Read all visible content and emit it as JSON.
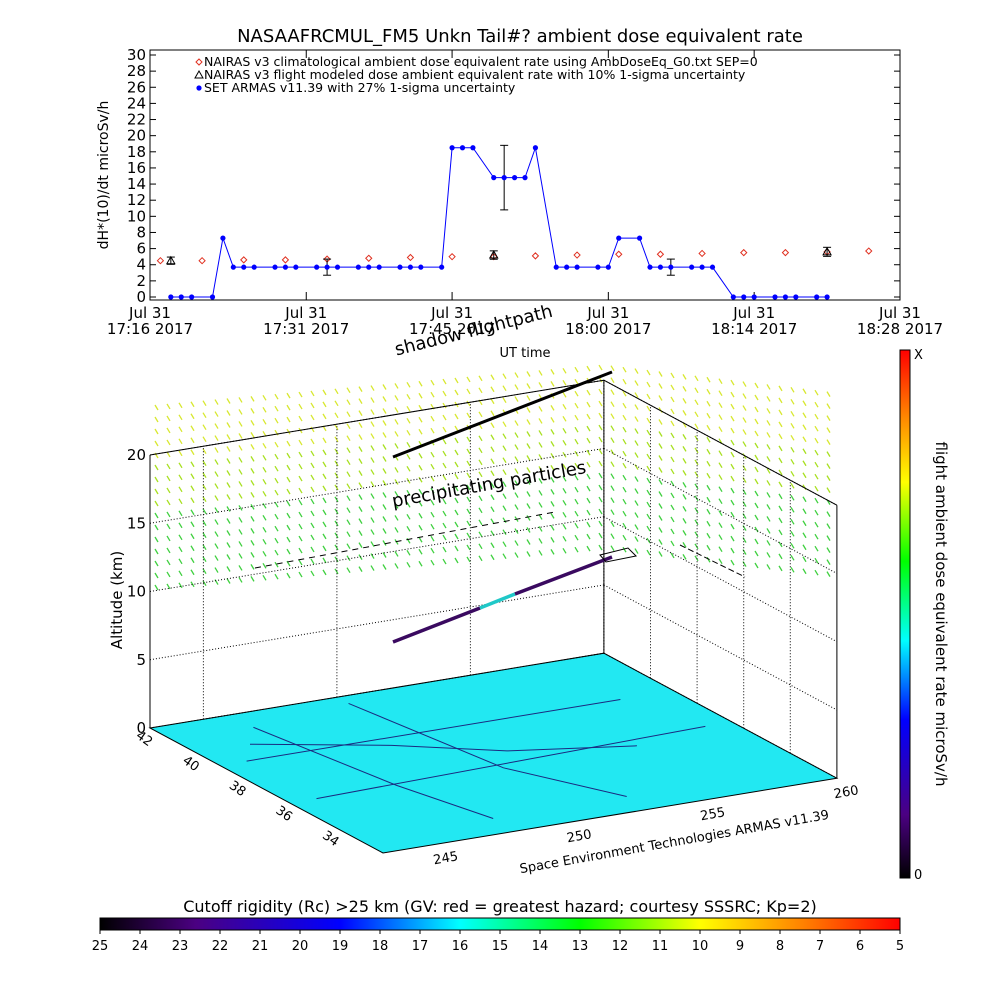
{
  "chart_data": [
    {
      "type": "line",
      "title": "NASAAFRCMUL_FM5 Unkn Tail#? ambient dose equivalent rate",
      "x_label": "UT time",
      "y_label": "dH*(10)/dt microSv/h",
      "xlim": [
        "2017-07-31T17:16",
        "2017-07-31T18:28"
      ],
      "xticks": [
        {
          "value": "2017-07-31T17:16",
          "label": [
            "Jul 31",
            "17:16 2017"
          ]
        },
        {
          "value": "2017-07-31T17:31",
          "label": [
            "Jul 31",
            "17:31 2017"
          ]
        },
        {
          "value": "2017-07-31T17:45",
          "label": [
            "Jul 31",
            "17:45 2017"
          ]
        },
        {
          "value": "2017-07-31T18:00",
          "label": [
            "Jul 31",
            "18:00 2017"
          ]
        },
        {
          "value": "2017-07-31T18:14",
          "label": [
            "Jul 31",
            "18:14 2017"
          ]
        },
        {
          "value": "2017-07-31T18:28",
          "label": [
            "Jul 31",
            "18:28 2017"
          ]
        }
      ],
      "ylim": [
        0,
        30
      ],
      "yticks": [
        0,
        2,
        4,
        6,
        8,
        10,
        12,
        14,
        16,
        18,
        20,
        22,
        24,
        26,
        28,
        30
      ],
      "series": [
        {
          "name": "NAIRAS v3 climatological ambient dose equivalent rate using AmbDoseEq_G0.txt SEP=0",
          "color": "#e03020",
          "marker": "diamond",
          "connected": false,
          "x": [
            "2017-07-31T17:17",
            "2017-07-31T17:21",
            "2017-07-31T17:25",
            "2017-07-31T17:29",
            "2017-07-31T17:33",
            "2017-07-31T17:37",
            "2017-07-31T17:41",
            "2017-07-31T17:45",
            "2017-07-31T17:49",
            "2017-07-31T17:53",
            "2017-07-31T17:57",
            "2017-07-31T18:01",
            "2017-07-31T18:05",
            "2017-07-31T18:09",
            "2017-07-31T18:13",
            "2017-07-31T18:17",
            "2017-07-31T18:21",
            "2017-07-31T18:25"
          ],
          "values": [
            4.5,
            4.5,
            4.6,
            4.6,
            4.7,
            4.8,
            4.9,
            5.0,
            5.0,
            5.1,
            5.2,
            5.3,
            5.3,
            5.4,
            5.5,
            5.5,
            5.6,
            5.7
          ]
        },
        {
          "name": "NAIRAS v3 flight modeled dose ambient equivalent rate with 10% 1-sigma uncertainty",
          "color": "#000000",
          "marker": "triangle",
          "connected": false,
          "x": [
            "2017-07-31T17:18",
            "2017-07-31T17:49",
            "2017-07-31T18:21"
          ],
          "values": [
            4.5,
            5.2,
            5.6
          ],
          "errors": [
            0.45,
            0.52,
            0.56
          ]
        },
        {
          "name": "SET ARMAS v11.39 with 27% 1-sigma uncertainty",
          "color": "#0000ff",
          "marker": "circle",
          "connected": true,
          "x": [
            "2017-07-31T17:18",
            "2017-07-31T17:19",
            "2017-07-31T17:20",
            "2017-07-31T17:22",
            "2017-07-31T17:23",
            "2017-07-31T17:24",
            "2017-07-31T17:25",
            "2017-07-31T17:26",
            "2017-07-31T17:28",
            "2017-07-31T17:29",
            "2017-07-31T17:30",
            "2017-07-31T17:32",
            "2017-07-31T17:33",
            "2017-07-31T17:34",
            "2017-07-31T17:36",
            "2017-07-31T17:37",
            "2017-07-31T17:38",
            "2017-07-31T17:40",
            "2017-07-31T17:41",
            "2017-07-31T17:42",
            "2017-07-31T17:44",
            "2017-07-31T17:45",
            "2017-07-31T17:46",
            "2017-07-31T17:47",
            "2017-07-31T17:49",
            "2017-07-31T17:50",
            "2017-07-31T17:51",
            "2017-07-31T17:52",
            "2017-07-31T17:53",
            "2017-07-31T17:55",
            "2017-07-31T17:56",
            "2017-07-31T17:57",
            "2017-07-31T17:59",
            "2017-07-31T18:00",
            "2017-07-31T18:01",
            "2017-07-31T18:03",
            "2017-07-31T18:04",
            "2017-07-31T18:05",
            "2017-07-31T18:06",
            "2017-07-31T18:08",
            "2017-07-31T18:09",
            "2017-07-31T18:10",
            "2017-07-31T18:12",
            "2017-07-31T18:13",
            "2017-07-31T18:14",
            "2017-07-31T18:16",
            "2017-07-31T18:17",
            "2017-07-31T18:18",
            "2017-07-31T18:20",
            "2017-07-31T18:21"
          ],
          "values": [
            0,
            0,
            0,
            0,
            7.3,
            3.7,
            3.7,
            3.7,
            3.7,
            3.7,
            3.7,
            3.7,
            3.7,
            3.7,
            3.7,
            3.7,
            3.7,
            3.7,
            3.7,
            3.7,
            3.7,
            18.5,
            18.5,
            18.5,
            14.8,
            14.8,
            14.8,
            14.8,
            18.5,
            3.7,
            3.7,
            3.7,
            3.7,
            3.7,
            7.3,
            7.3,
            3.7,
            3.7,
            3.7,
            3.7,
            3.7,
            3.7,
            0,
            0,
            0,
            0,
            0,
            0,
            0,
            0
          ],
          "errors": [
            null,
            null,
            null,
            null,
            null,
            null,
            null,
            null,
            null,
            null,
            null,
            null,
            1.0,
            null,
            null,
            null,
            null,
            null,
            null,
            null,
            null,
            null,
            null,
            null,
            null,
            4.0,
            null,
            null,
            null,
            null,
            null,
            null,
            null,
            null,
            null,
            null,
            null,
            null,
            1.0,
            null,
            null,
            null,
            null,
            null,
            null,
            null,
            null,
            null,
            null,
            null
          ]
        }
      ]
    },
    {
      "type": "track3d",
      "z_label": "Altitude (km)",
      "zlim": [
        0,
        20
      ],
      "zticks": [
        0,
        5,
        10,
        15,
        20
      ],
      "latlim": [
        32,
        42
      ],
      "latticks": [
        34,
        36,
        38,
        40,
        42
      ],
      "lonlim": [
        243,
        260
      ],
      "lonticks": [
        245,
        250,
        255,
        260
      ],
      "annotations": [
        "shadow flightpath",
        "precipitating particles"
      ],
      "credit": "Space Environment Technologies ARMAS v11.39",
      "dose_colorbar": {
        "label": "flight ambient dose equivalent rate microSv/h",
        "top_label": "X",
        "bottom_label": "0"
      },
      "rigidity_colorbar": {
        "title": "Cutoff rigidity (Rc) >25 km (GV: red = greatest hazard; courtesy SSSRC; Kp=2)",
        "lim": [
          25,
          5
        ],
        "ticks": [
          25,
          24,
          23,
          22,
          21,
          20,
          19,
          18,
          17,
          16,
          15,
          14,
          13,
          12,
          11,
          10,
          9,
          8,
          7,
          6,
          5
        ]
      }
    }
  ]
}
